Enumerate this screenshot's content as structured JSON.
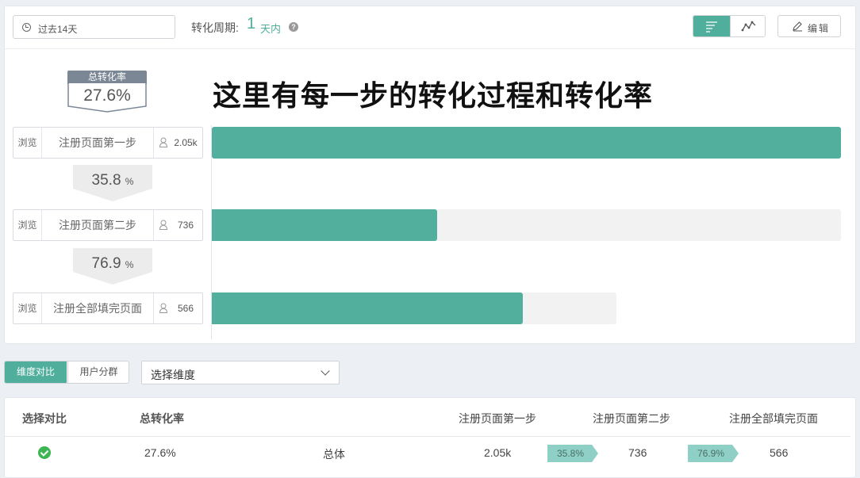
{
  "toolbar": {
    "date_range": "过去14天",
    "period_label": "转化周期:",
    "period_value": "1",
    "period_unit": "天内",
    "help_icon": "question-circle-icon",
    "view_funnel_icon": "funnel-list-icon",
    "view_trend_icon": "trend-line-icon",
    "edit_label": "编辑",
    "accent_color": "#4fae9c"
  },
  "funnel": {
    "total_label": "总转化率",
    "total_value": "27.6%",
    "annotation": "这里有每一步的转化过程和转化率",
    "steps": [
      {
        "type": "浏览",
        "name": "注册页面第一步",
        "count": "2.05k",
        "fill": 1.0
      },
      {
        "type": "浏览",
        "name": "注册页面第二步",
        "count": "736",
        "fill": 0.358
      },
      {
        "type": "浏览",
        "name": "注册全部填完页面",
        "count": "566",
        "fill": 0.769
      }
    ],
    "rates": [
      {
        "value": "35.8",
        "unit": "%"
      },
      {
        "value": "76.9",
        "unit": "%"
      }
    ],
    "bar_color": "#52ae9d"
  },
  "compare": {
    "tabs": [
      "维度对比",
      "用户分群"
    ],
    "dimension_placeholder": "选择维度"
  },
  "table": {
    "headers": [
      "选择对比",
      "总转化率",
      "注册页面第一步",
      "注册页面第二步",
      "注册全部填完页面"
    ],
    "row": {
      "total_rate": "27.6%",
      "label": "总体",
      "step1": "2.05k",
      "rate1": "35.8%",
      "step2": "736",
      "rate2": "76.9%",
      "step3": "566"
    }
  }
}
